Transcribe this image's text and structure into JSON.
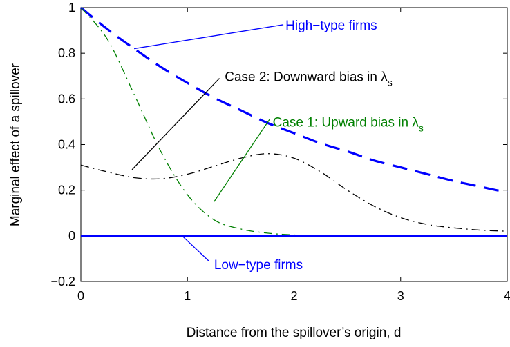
{
  "chart_data": {
    "type": "line",
    "title": "",
    "xlabel": "Distance from the spillover’s origin, d",
    "ylabel": "Marginal effect of a spillover",
    "xlim": [
      0,
      4
    ],
    "ylim": [
      -0.2,
      1
    ],
    "xticks": [
      "0",
      "1",
      "2",
      "3",
      "4"
    ],
    "yticks": [
      "−0.2",
      "0",
      "0.2",
      "0.4",
      "0.6",
      "0.8",
      "1"
    ],
    "grid": false,
    "legend": "none",
    "series": [
      {
        "name": "High−type firms",
        "color": "#0000ff",
        "style": "dashed",
        "x": [
          0,
          0.25,
          0.5,
          0.75,
          1.0,
          1.25,
          1.5,
          1.75,
          2.0,
          2.25,
          2.5,
          2.75,
          3.0,
          3.25,
          3.5,
          3.75,
          4.0
        ],
        "y": [
          1.0,
          0.905,
          0.82,
          0.74,
          0.67,
          0.605,
          0.55,
          0.495,
          0.45,
          0.405,
          0.37,
          0.33,
          0.3,
          0.27,
          0.24,
          0.215,
          0.19
        ]
      },
      {
        "name": "Case 1: Upward bias in λ",
        "color": "#008000",
        "style": "dashdot",
        "x": [
          0,
          0.25,
          0.5,
          0.75,
          1.0,
          1.25,
          1.5,
          1.75,
          2.0,
          2.25,
          2.5,
          3.0,
          3.5,
          4.0
        ],
        "y": [
          1.0,
          0.86,
          0.62,
          0.37,
          0.18,
          0.07,
          0.03,
          0.012,
          0.004,
          0.0,
          0.0,
          0.0,
          0.0,
          0.0
        ]
      },
      {
        "name": "Case 2: Downward bias in λ",
        "color": "#000000",
        "style": "dashdot",
        "x": [
          0,
          0.25,
          0.5,
          0.75,
          1.0,
          1.25,
          1.5,
          1.75,
          2.0,
          2.25,
          2.5,
          2.75,
          3.0,
          3.25,
          3.5,
          3.75,
          4.0
        ],
        "y": [
          0.31,
          0.28,
          0.255,
          0.25,
          0.27,
          0.305,
          0.34,
          0.36,
          0.34,
          0.28,
          0.2,
          0.13,
          0.08,
          0.05,
          0.035,
          0.025,
          0.02
        ]
      },
      {
        "name": "Low−type firms",
        "color": "#0000ff",
        "style": "solid",
        "x": [
          0,
          4
        ],
        "y": [
          0,
          0
        ]
      }
    ],
    "annotations": [
      {
        "text_main": "High−type firms",
        "text_sub": "",
        "color": "#0000ff",
        "text_x": 1.92,
        "text_y": 0.925,
        "line_from": [
          1.9,
          0.925
        ],
        "line_to": [
          0.5,
          0.82
        ]
      },
      {
        "text_main": "Case 2: Downward bias in λ",
        "text_sub": "s",
        "color": "#000000",
        "text_x": 1.35,
        "text_y": 0.7,
        "line_from": [
          1.3,
          0.69
        ],
        "line_to": [
          0.48,
          0.29
        ]
      },
      {
        "text_main": "Case 1: Upward bias in λ",
        "text_sub": "s",
        "color": "#008000",
        "text_x": 1.8,
        "text_y": 0.5,
        "line_from": [
          1.77,
          0.51
        ],
        "line_to": [
          1.25,
          0.15
        ]
      },
      {
        "text_main": "Low−type firms",
        "text_sub": "",
        "color": "#0000ff",
        "text_x": 1.25,
        "text_y": -0.125,
        "line_from": [
          1.2,
          -0.11
        ],
        "line_to": [
          0.95,
          0.0
        ]
      }
    ]
  }
}
